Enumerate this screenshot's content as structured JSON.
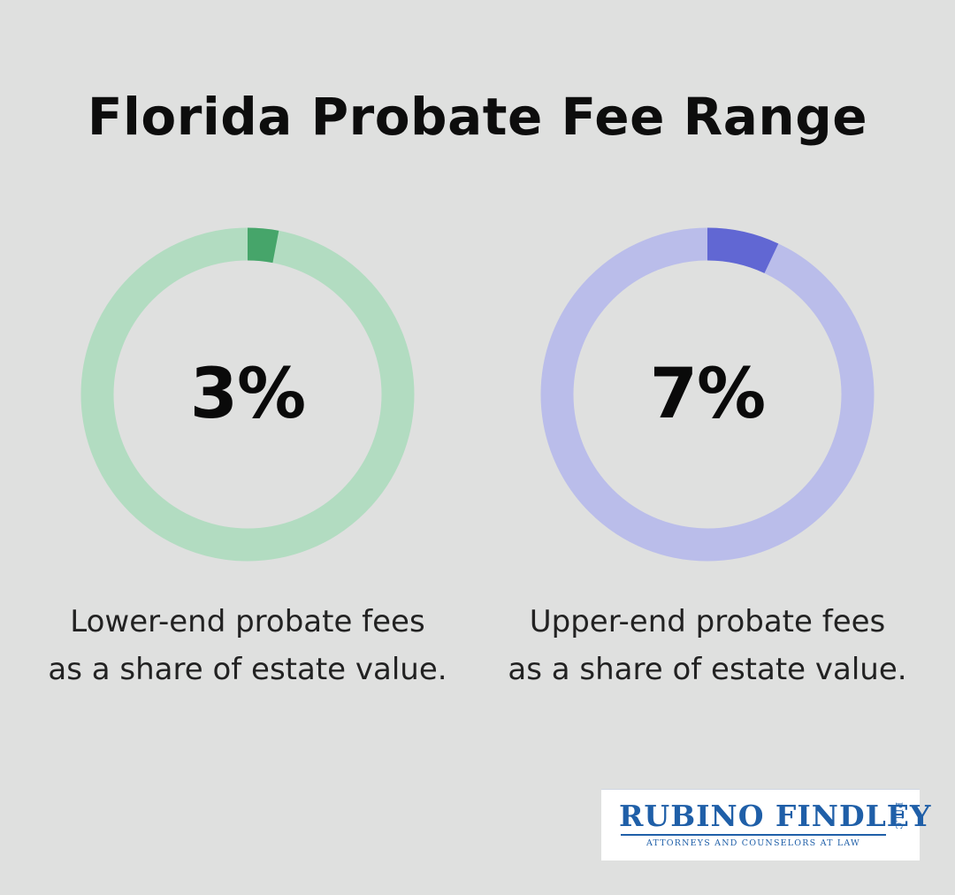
{
  "title": "Florida Probate Fee Range",
  "chart_data": [
    {
      "type": "pie",
      "label": "3%",
      "value": 3,
      "max": 100,
      "caption_line1": "Lower-end probate fees",
      "caption_line2": "as a share of estate value.",
      "fill_color": "#46a56a",
      "track_color": "#b2dcc1"
    },
    {
      "type": "pie",
      "label": "7%",
      "value": 7,
      "max": 100,
      "caption_line1": "Upper-end probate fees",
      "caption_line2": "as a share of estate value.",
      "fill_color": "#6167d3",
      "track_color": "#babdea"
    }
  ],
  "logo": {
    "name": "RUBINO FINDLEY",
    "suffix": "PLLC",
    "tagline": "ATTORNEYS AND COUNSELORS AT LAW"
  }
}
